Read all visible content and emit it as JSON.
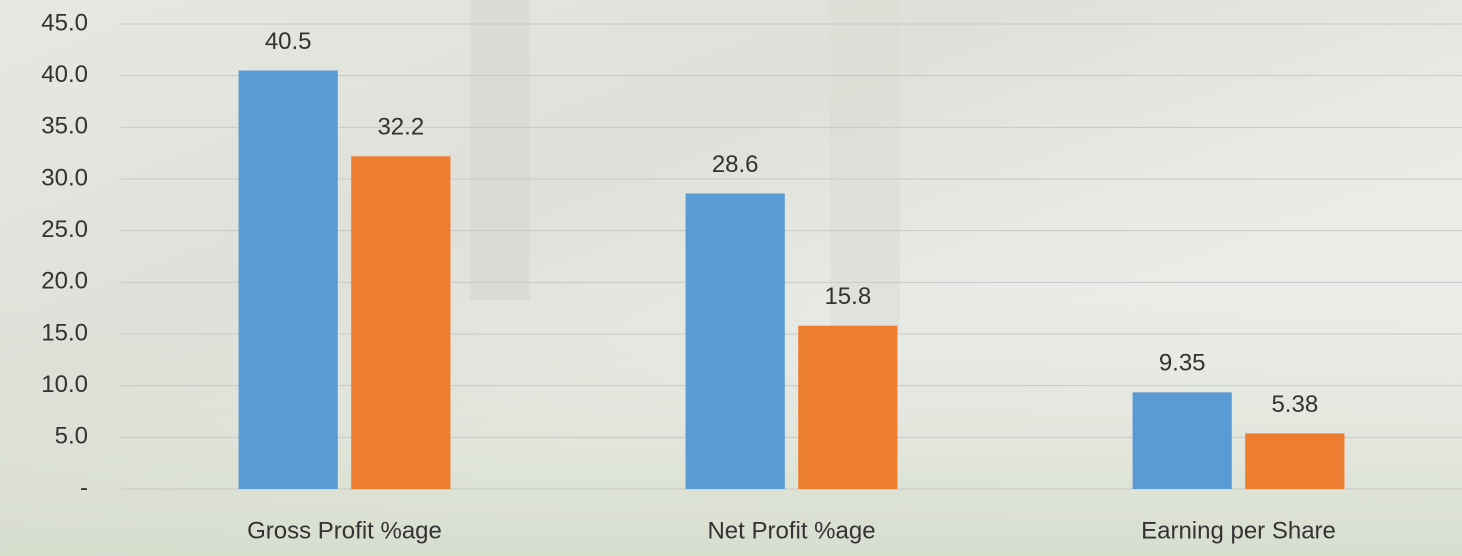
{
  "chart_data": {
    "type": "bar",
    "categories": [
      "Gross Profit %age",
      "Net Profit %age",
      "Earning per Share"
    ],
    "series": [
      {
        "color": "#5b9bd5",
        "values": [
          40.5,
          28.6,
          9.35
        ]
      },
      {
        "color": "#ed7d31",
        "values": [
          32.2,
          15.8,
          5.38
        ]
      }
    ],
    "ylim": [
      0,
      45
    ],
    "yticks": [
      {
        "value": 0,
        "label": "-"
      },
      {
        "value": 5,
        "label": "5.0"
      },
      {
        "value": 10,
        "label": "10.0"
      },
      {
        "value": 15,
        "label": "15.0"
      },
      {
        "value": 20,
        "label": "20.0"
      },
      {
        "value": 25,
        "label": "25.0"
      },
      {
        "value": 30,
        "label": "30.0"
      },
      {
        "value": 35,
        "label": "35.0"
      },
      {
        "value": 40,
        "label": "40.0"
      },
      {
        "value": 45,
        "label": "45.0"
      }
    ],
    "grid": true
  }
}
